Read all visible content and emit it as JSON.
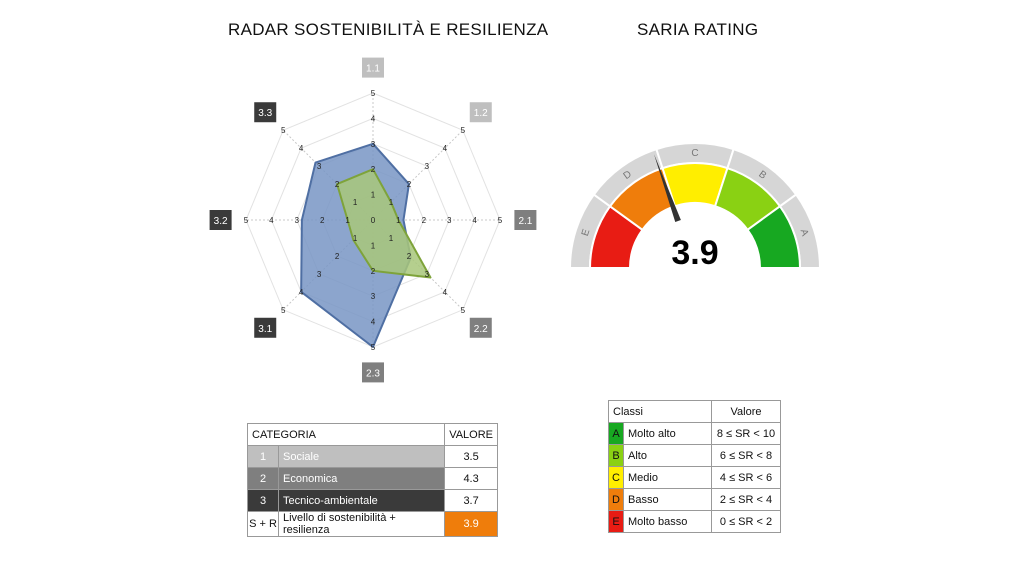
{
  "titles": {
    "radar": "RADAR SOSTENIBILITÀ E RESILIENZA",
    "gauge": "SARIA RATING"
  },
  "chart_data": [
    {
      "type": "radar",
      "title": "RADAR SOSTENIBILITÀ E RESILIENZA",
      "axes": [
        {
          "label": "1.1",
          "color": "#bfbfbf"
        },
        {
          "label": "1.2",
          "color": "#bfbfbf"
        },
        {
          "label": "2.1",
          "color": "#7f7f7f"
        },
        {
          "label": "2.2",
          "color": "#7f7f7f"
        },
        {
          "label": "2.3",
          "color": "#7f7f7f"
        },
        {
          "label": "3.1",
          "color": "#3a3a3a"
        },
        {
          "label": "3.2",
          "color": "#3a3a3a"
        },
        {
          "label": "3.3",
          "color": "#3a3a3a"
        }
      ],
      "rlim": [
        0,
        5
      ],
      "ticks": [
        1,
        2,
        3,
        4,
        5
      ],
      "center_tick": "0",
      "grid": true,
      "series": [
        {
          "values": [
            3,
            2,
            1.2,
            2.1,
            5,
            4,
            2.8,
            3.2
          ],
          "color": "#4f6fa3",
          "fill": "#7895c4"
        },
        {
          "values": [
            2,
            1,
            1,
            3.2,
            2,
            1.1,
            1,
            2
          ],
          "color": "#7ea33a",
          "fill": "#a8c77a"
        }
      ]
    },
    {
      "type": "gauge",
      "title": "SARIA RATING",
      "range": [
        0,
        10
      ],
      "value": 3.9,
      "value_label": "3.9",
      "bands": [
        {
          "label": "E",
          "from": 0,
          "to": 2,
          "color": "#e81c14"
        },
        {
          "label": "D",
          "from": 2,
          "to": 4,
          "color": "#ef7d0b"
        },
        {
          "label": "C",
          "from": 4,
          "to": 6,
          "color": "#ffee00"
        },
        {
          "label": "B",
          "from": 6,
          "to": 8,
          "color": "#8ad113"
        },
        {
          "label": "A",
          "from": 8,
          "to": 10,
          "color": "#17a821"
        }
      ]
    }
  ],
  "category_table": {
    "headers": [
      "CATEGORIA",
      "VALORE"
    ],
    "rows": [
      {
        "num": "1",
        "name": "Sociale",
        "value": "3.5",
        "bg": "#bfbfbf"
      },
      {
        "num": "2",
        "name": "Economica",
        "value": "4.3",
        "bg": "#7f7f7f"
      },
      {
        "num": "3",
        "name": "Tecnico-ambientale",
        "value": "3.7",
        "bg": "#3a3a3a"
      }
    ],
    "total": {
      "num": "S + R",
      "name": "Livello di sostenibilità + resilienza",
      "value": "3.9",
      "value_bg": "#ef7d0b"
    }
  },
  "class_table": {
    "headers": [
      "Classi",
      "Valore"
    ],
    "rows": [
      {
        "letter": "A",
        "name": "Molto alto",
        "range": "8 ≤ SR < 10",
        "color": "#17a821"
      },
      {
        "letter": "B",
        "name": "Alto",
        "range": "6 ≤ SR < 8",
        "color": "#8ad113"
      },
      {
        "letter": "C",
        "name": "Medio",
        "range": "4 ≤ SR < 6",
        "color": "#ffee00"
      },
      {
        "letter": "D",
        "name": "Basso",
        "range": "2 ≤ SR < 4",
        "color": "#ef7d0b"
      },
      {
        "letter": "E",
        "name": "Molto basso",
        "range": "0 ≤ SR < 2",
        "color": "#e81c14"
      }
    ]
  }
}
